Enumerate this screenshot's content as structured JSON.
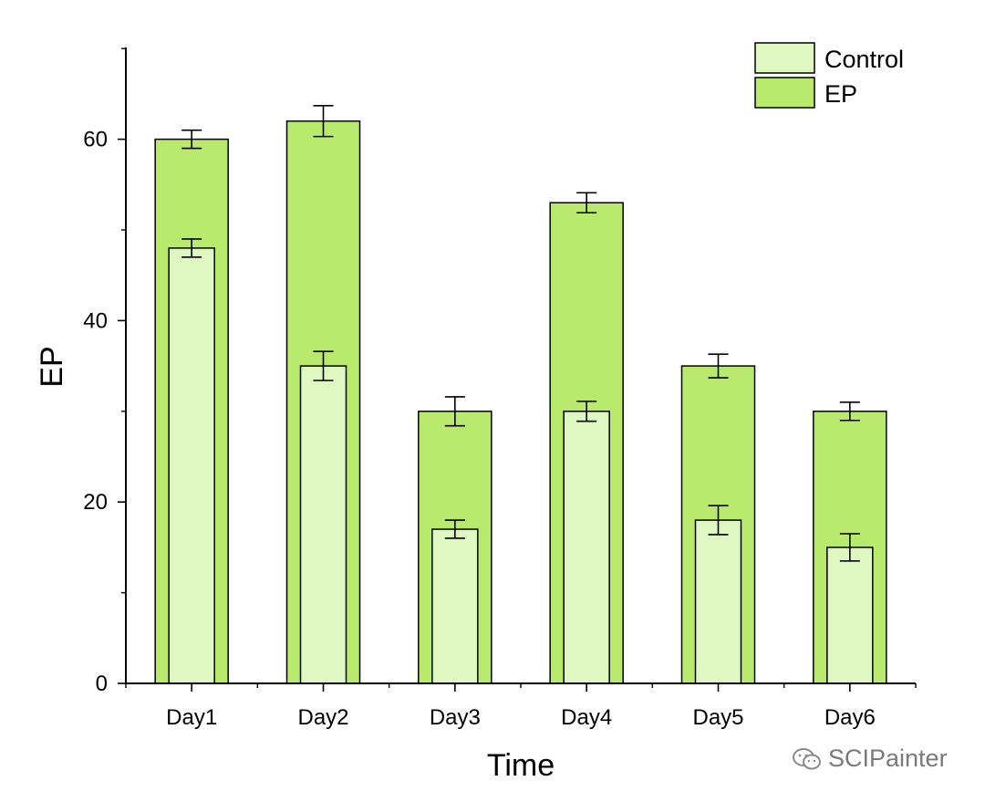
{
  "chart_data": {
    "type": "bar",
    "title": "",
    "xlabel": "Time",
    "ylabel": "EP",
    "categories": [
      "Day1",
      "Day2",
      "Day3",
      "Day4",
      "Day5",
      "Day6"
    ],
    "ylim": [
      0,
      70
    ],
    "yticks": [
      0,
      20,
      40,
      60
    ],
    "yticks_minor": [
      10,
      30,
      50,
      70
    ],
    "grid": false,
    "legend": "top-right",
    "series": [
      {
        "name": "EP",
        "color": "#b9ea6e",
        "values": [
          60,
          62,
          30,
          53,
          35,
          30
        ],
        "errors": [
          1.0,
          1.7,
          1.6,
          1.1,
          1.3,
          1.0
        ]
      },
      {
        "name": "Control",
        "color": "#dff7c1",
        "values": [
          48,
          35,
          17,
          30,
          18,
          15
        ],
        "errors": [
          1.0,
          1.6,
          1.0,
          1.1,
          1.6,
          1.5
        ]
      }
    ]
  },
  "legend_items": [
    "Control",
    "EP"
  ],
  "watermark": {
    "text": "SCIPainter",
    "icon": "wechat-icon"
  }
}
